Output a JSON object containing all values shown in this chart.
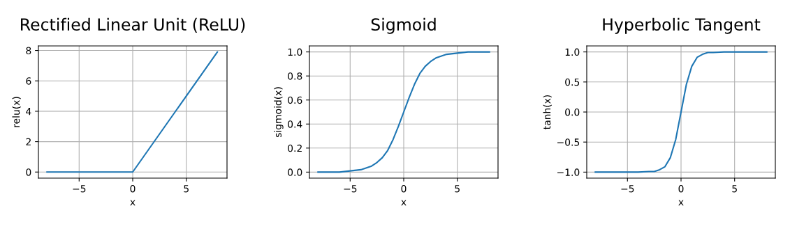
{
  "chart_data": [
    {
      "type": "line",
      "title": "Rectified Linear Unit (ReLU)",
      "xlabel": "x",
      "ylabel": "relu(x)",
      "x": [
        -8,
        0,
        7.9
      ],
      "series": [
        {
          "color": "#1f77b4",
          "values": [
            0,
            0,
            7.9
          ]
        }
      ],
      "xlim": [
        -8.8,
        8.8
      ],
      "ylim": [
        -0.4,
        8.3
      ],
      "xticks": [
        -5,
        0,
        5
      ],
      "yticks": [
        0,
        2,
        4,
        6,
        8
      ],
      "grid": true
    },
    {
      "type": "line",
      "title": "Sigmoid",
      "xlabel": "x",
      "ylabel": "sigmoid(x)",
      "x": [
        -8,
        -6,
        -5,
        -4,
        -3,
        -2.5,
        -2,
        -1.5,
        -1,
        -0.5,
        0,
        0.5,
        1,
        1.5,
        2,
        2.5,
        3,
        4,
        5,
        6,
        8
      ],
      "series": [
        {
          "color": "#1f77b4",
          "values": [
            0.0,
            0.0,
            0.01,
            0.02,
            0.05,
            0.08,
            0.12,
            0.18,
            0.27,
            0.38,
            0.5,
            0.62,
            0.73,
            0.82,
            0.88,
            0.92,
            0.95,
            0.98,
            0.99,
            1.0,
            1.0
          ]
        }
      ],
      "xlim": [
        -8.8,
        8.8
      ],
      "ylim": [
        -0.05,
        1.05
      ],
      "xticks": [
        -5,
        0,
        5
      ],
      "yticks": [
        {
          "value": 0,
          "label": "0.0"
        },
        0.2,
        0.4,
        0.6,
        0.8,
        {
          "value": 1,
          "label": "1.0"
        }
      ],
      "grid": true
    },
    {
      "type": "line",
      "title": "Hyperbolic Tangent",
      "xlabel": "x",
      "ylabel": "tanh(x)",
      "x": [
        -8,
        -4,
        -3,
        -2.5,
        -2,
        -1.5,
        -1,
        -0.5,
        0,
        0.5,
        1,
        1.5,
        2,
        2.5,
        3,
        4,
        8
      ],
      "series": [
        {
          "color": "#1f77b4",
          "values": [
            -1.0,
            -1.0,
            -0.99,
            -0.99,
            -0.96,
            -0.91,
            -0.76,
            -0.46,
            0.0,
            0.46,
            0.76,
            0.91,
            0.96,
            0.99,
            0.99,
            1.0,
            1.0
          ]
        }
      ],
      "xlim": [
        -8.8,
        8.8
      ],
      "ylim": [
        -1.1,
        1.1
      ],
      "xticks": [
        -5,
        0,
        5
      ],
      "yticks": [
        {
          "value": -1,
          "label": "−1.0"
        },
        {
          "value": -0.5,
          "label": "−0.5"
        },
        {
          "value": 0,
          "label": "0.0"
        },
        0.5,
        {
          "value": 1,
          "label": "1.0"
        }
      ],
      "grid": true
    }
  ]
}
